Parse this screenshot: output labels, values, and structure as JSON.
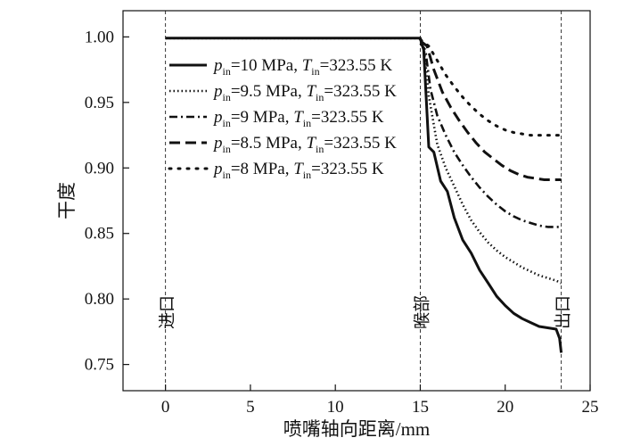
{
  "chart_data": {
    "type": "line",
    "title": "",
    "xlabel": "喷嘴轴向距离/mm",
    "ylabel": "干度",
    "xlim": [
      -2.5,
      25
    ],
    "ylim": [
      0.73,
      1.02
    ],
    "xticks": [
      0,
      5,
      10,
      15,
      20,
      25
    ],
    "xtick_labels": [
      "0",
      "5",
      "10",
      "15",
      "20",
      "25"
    ],
    "yticks": [
      0.75,
      0.8,
      0.85,
      0.9,
      0.95,
      1.0
    ],
    "ytick_labels": [
      "0.75",
      "0.80",
      "0.85",
      "0.90",
      "0.95",
      "1.00"
    ],
    "grid": false,
    "legend_position": "top-center",
    "markers": [
      {
        "x": 0,
        "label": "进口"
      },
      {
        "x": 15,
        "label": "喉部"
      },
      {
        "x": 23.3,
        "label": "出口"
      }
    ],
    "series": [
      {
        "name": "p_in=10 MPa, T_in=323.55 K",
        "legend": {
          "p": "p",
          "psub": "in",
          "pval": "=10 MPa, ",
          "t": "T",
          "tsub": "in",
          "tval": "=323.55 K"
        },
        "dash": "solid",
        "x": [
          0,
          15.0,
          15.2,
          15.5,
          15.8,
          16.2,
          16.6,
          17.0,
          17.5,
          18.0,
          18.5,
          19.0,
          19.5,
          20.0,
          20.5,
          21.0,
          21.5,
          22.0,
          22.5,
          23.0,
          23.2,
          23.3
        ],
        "y": [
          0.999,
          0.999,
          0.99,
          0.916,
          0.912,
          0.89,
          0.882,
          0.862,
          0.845,
          0.835,
          0.822,
          0.812,
          0.802,
          0.795,
          0.789,
          0.785,
          0.782,
          0.779,
          0.778,
          0.777,
          0.77,
          0.759
        ]
      },
      {
        "name": "p_in=9.5 MPa, T_in=323.55 K",
        "legend": {
          "p": "p",
          "psub": "in",
          "pval": "=9.5 MPa, ",
          "t": "T",
          "tsub": "in",
          "tval": "=323.55 K"
        },
        "dash": "dotted",
        "x": [
          0,
          15.0,
          15.2,
          15.5,
          16.0,
          16.5,
          17.0,
          17.5,
          18.0,
          18.5,
          19.0,
          19.5,
          20.0,
          20.5,
          21.0,
          21.5,
          22.0,
          22.5,
          23.0,
          23.3
        ],
        "y": [
          0.999,
          0.999,
          0.993,
          0.955,
          0.918,
          0.9,
          0.886,
          0.872,
          0.86,
          0.851,
          0.843,
          0.837,
          0.832,
          0.828,
          0.824,
          0.821,
          0.818,
          0.816,
          0.814,
          0.812
        ]
      },
      {
        "name": "p_in=9 MPa, T_in=323.55 K",
        "legend": {
          "p": "p",
          "psub": "in",
          "pval": "=9 MPa, ",
          "t": "T",
          "tsub": "in",
          "tval": "=323.55 K"
        },
        "dash": "dashdot",
        "x": [
          15.0,
          15.3,
          15.6,
          16.0,
          16.5,
          17.0,
          17.5,
          18.0,
          18.5,
          19.0,
          19.5,
          20.0,
          20.5,
          21.0,
          21.5,
          22.0,
          22.5,
          23.0,
          23.3
        ],
        "y": [
          0.995,
          0.99,
          0.96,
          0.94,
          0.925,
          0.912,
          0.902,
          0.893,
          0.885,
          0.878,
          0.872,
          0.867,
          0.863,
          0.86,
          0.858,
          0.856,
          0.855,
          0.855,
          0.855
        ]
      },
      {
        "name": "p_in=8.5 MPa, T_in=323.55 K",
        "legend": {
          "p": "p",
          "psub": "in",
          "pval": "=8.5 MPa, ",
          "t": "T",
          "tsub": "in",
          "tval": "=323.55 K"
        },
        "dash": "dashed",
        "x": [
          15.0,
          15.4,
          15.8,
          16.3,
          16.8,
          17.3,
          17.8,
          18.3,
          18.8,
          19.3,
          19.8,
          20.3,
          20.8,
          21.3,
          21.8,
          22.3,
          22.8,
          23.3
        ],
        "y": [
          0.997,
          0.993,
          0.975,
          0.958,
          0.946,
          0.936,
          0.927,
          0.919,
          0.912,
          0.907,
          0.902,
          0.898,
          0.895,
          0.893,
          0.892,
          0.891,
          0.891,
          0.891
        ]
      },
      {
        "name": "p_in=8 MPa, T_in=323.55 K",
        "legend": {
          "p": "p",
          "psub": "in",
          "pval": "=8 MPa, ",
          "t": "T",
          "tsub": "in",
          "tval": "=323.55 K"
        },
        "dash": "sparse",
        "x": [
          15.0,
          15.5,
          16.0,
          16.5,
          17.0,
          17.5,
          18.0,
          18.5,
          19.0,
          19.5,
          20.0,
          20.5,
          21.0,
          21.5,
          22.0,
          22.5,
          23.0,
          23.3
        ],
        "y": [
          0.998,
          0.993,
          0.982,
          0.971,
          0.962,
          0.954,
          0.947,
          0.941,
          0.936,
          0.932,
          0.929,
          0.927,
          0.926,
          0.925,
          0.925,
          0.925,
          0.925,
          0.925
        ]
      }
    ]
  }
}
